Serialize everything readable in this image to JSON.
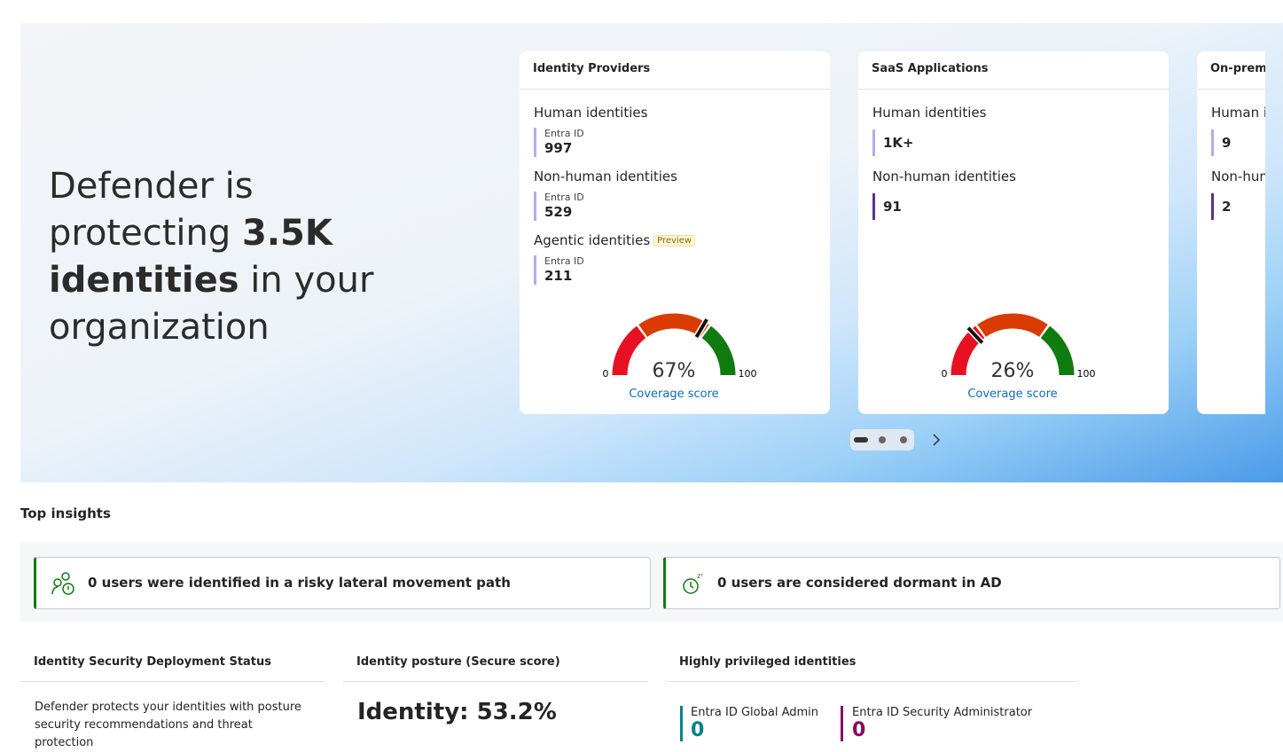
{
  "hero": {
    "headline_start": "Defender is protecting",
    "headline_bold": "3.5K identities",
    "headline_end": "in your organization"
  },
  "cards": [
    {
      "title": "Identity Providers",
      "groups": [
        {
          "label": "Human identities",
          "source": "Entra ID",
          "value": 997
        },
        {
          "label": "Non-human identities",
          "source": "Entra ID",
          "value": 529
        },
        {
          "label": "Agentic identities",
          "badge": "Preview",
          "source": "Entra ID",
          "value": 211
        }
      ],
      "gauge": {
        "min": 0,
        "max": 100,
        "score": 67,
        "score_label": "67%",
        "caption": "Coverage score"
      }
    },
    {
      "title": "SaaS Applications",
      "groups": [
        {
          "label": "Human identities",
          "value": "1K+"
        },
        {
          "label": "Non-human identities",
          "value": 91
        }
      ],
      "gauge": {
        "min": 0,
        "max": 100,
        "score": 26,
        "score_label": "26%",
        "caption": "Coverage score"
      }
    },
    {
      "title": "On-premises",
      "groups": [
        {
          "label": "Human identities",
          "value": 9
        },
        {
          "label": "Non-human identities",
          "value": 2
        }
      ],
      "gauge": {
        "min": 0
      }
    }
  ],
  "top_insights": {
    "title": "Top insights",
    "items": [
      "0 users were identified in a risky lateral movement path",
      "0 users are considered dormant in AD"
    ]
  },
  "panels": [
    {
      "title": "Identity Security Deployment Status",
      "text": "Defender protects your identities with posture security recommendations and threat protection"
    },
    {
      "title": "Identity posture (Secure score)",
      "text": "Identity: 53.2%"
    },
    {
      "title": "Highly privileged identities",
      "items": [
        {
          "label": "Entra ID Global Admin",
          "value": 0
        },
        {
          "label": "Entra ID Security Administrator",
          "value": 0
        }
      ]
    }
  ]
}
